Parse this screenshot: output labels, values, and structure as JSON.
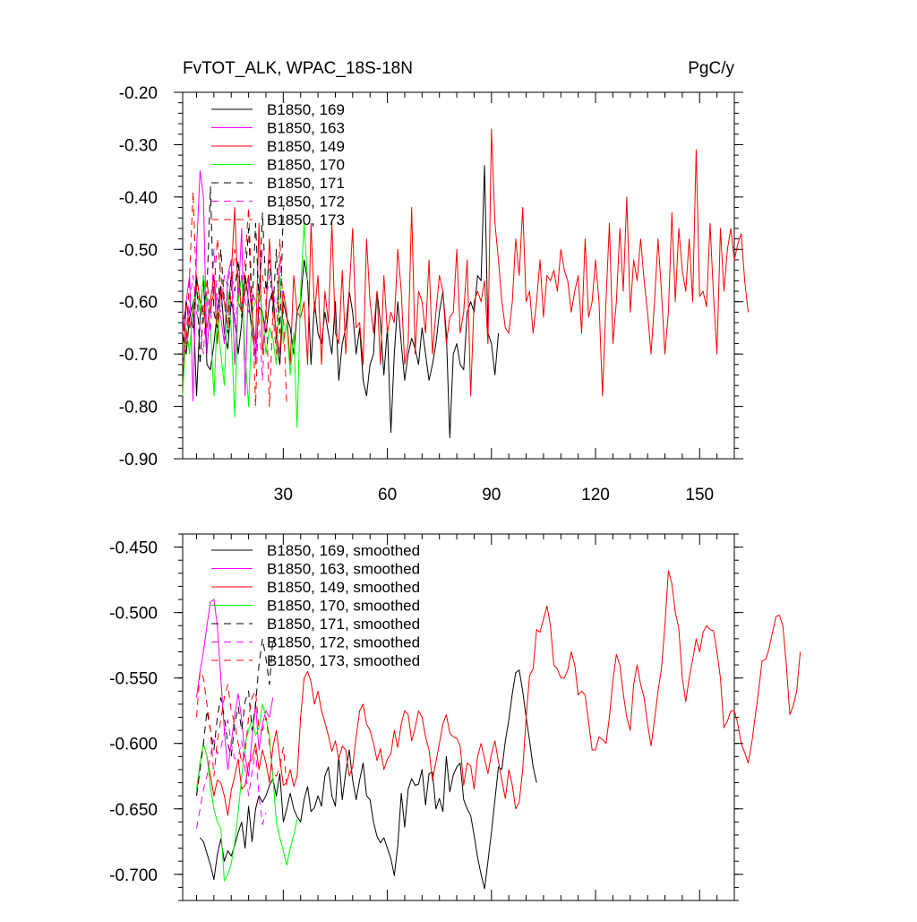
{
  "chart_data": [
    {
      "type": "line",
      "title_left": "FvTOT_ALK, WPAC_18S-18N",
      "title_right": "PgC/y",
      "xlim": [
        1,
        160
      ],
      "ylim": [
        -0.9,
        -0.2
      ],
      "x_ticks": [
        30,
        60,
        90,
        120,
        150
      ],
      "y_ticks": [
        -0.9,
        -0.8,
        -0.7,
        -0.6,
        -0.5,
        -0.4,
        -0.3,
        -0.2
      ],
      "y_tick_labels": [
        "-0.90",
        "-0.80",
        "-0.70",
        "-0.60",
        "-0.50",
        "-0.40",
        "-0.30",
        "-0.20"
      ],
      "legend_position": "top-left",
      "grid": false,
      "series": [
        {
          "name": "B1850, 169",
          "color": "#000000",
          "dash": "solid",
          "x_start": 1,
          "values": [
            -0.66,
            -0.7,
            -0.63,
            -0.6,
            -0.78,
            -0.63,
            -0.55,
            -0.72,
            -0.73,
            -0.68,
            -0.62,
            -0.57,
            -0.66,
            -0.69,
            -0.6,
            -0.63,
            -0.7,
            -0.64,
            -0.55,
            -0.6,
            -0.66,
            -0.7,
            -0.61,
            -0.62,
            -0.66,
            -0.6,
            -0.58,
            -0.67,
            -0.72,
            -0.6,
            -0.63,
            -0.65,
            -0.7,
            -0.62,
            -0.6,
            -0.52,
            -0.56,
            -0.72,
            -0.6,
            -0.66,
            -0.68,
            -0.62,
            -0.66,
            -0.7,
            -0.6,
            -0.75,
            -0.68,
            -0.65,
            -0.58,
            -0.62,
            -0.7,
            -0.65,
            -0.75,
            -0.78,
            -0.72,
            -0.7,
            -0.58,
            -0.64,
            -0.74,
            -0.65,
            -0.85,
            -0.7,
            -0.6,
            -0.68,
            -0.75,
            -0.7,
            -0.67,
            -0.69,
            -0.72,
            -0.65,
            -0.7,
            -0.75,
            -0.72,
            -0.68,
            -0.62,
            -0.58,
            -0.66,
            -0.86,
            -0.7,
            -0.68,
            -0.72,
            -0.73,
            -0.62,
            -0.6,
            -0.62,
            -0.55,
            -0.56,
            -0.34,
            -0.66,
            -0.68,
            -0.74,
            -0.66
          ]
        },
        {
          "name": "B1850, 163",
          "color": "#ff00ff",
          "dash": "solid",
          "x_start": 1,
          "values": [
            -0.66,
            -0.6,
            -0.55,
            -0.79,
            -0.5,
            -0.35,
            -0.4,
            -0.7,
            -0.6,
            -0.55,
            -0.62,
            -0.63,
            -0.68,
            -0.55,
            -0.52,
            -0.72,
            -0.6,
            -0.46,
            -0.78,
            -0.55,
            -0.62,
            -0.72,
            -0.58,
            -0.5
          ]
        },
        {
          "name": "B1850, 149",
          "color": "#ff0000",
          "dash": "solid",
          "x_start": 1,
          "values": [
            -0.77,
            -0.6,
            -0.65,
            -0.62,
            -0.55,
            -0.6,
            -0.62,
            -0.65,
            -0.6,
            -0.55,
            -0.68,
            -0.58,
            -0.6,
            -0.62,
            -0.55,
            -0.42,
            -0.6,
            -0.62,
            -0.58,
            -0.55,
            -0.63,
            -0.68,
            -0.45,
            -0.7,
            -0.62,
            -0.48,
            -0.6,
            -0.66,
            -0.7,
            -0.58,
            -0.62,
            -0.72,
            -0.55,
            -0.62,
            -0.63,
            -0.6,
            -0.72,
            -0.45,
            -0.62,
            -0.55,
            -0.72,
            -0.58,
            -0.64,
            -0.45,
            -0.66,
            -0.68,
            -0.54,
            -0.7,
            -0.58,
            -0.46,
            -0.65,
            -0.64,
            -0.72,
            -0.48,
            -0.6,
            -0.66,
            -0.58,
            -0.72,
            -0.55,
            -0.66,
            -0.62,
            -0.64,
            -0.5,
            -0.58,
            -0.72,
            -0.68,
            -0.42,
            -0.7,
            -0.58,
            -0.6,
            -0.66,
            -0.52,
            -0.7,
            -0.62,
            -0.55,
            -0.58,
            -0.68,
            -0.63,
            -0.62,
            -0.5,
            -0.66,
            -0.62,
            -0.52,
            -0.78,
            -0.6,
            -0.58,
            -0.6,
            -0.56,
            -0.68,
            -0.27,
            -0.45,
            -0.52,
            -0.6,
            -0.65,
            -0.66,
            -0.6,
            -0.48,
            -0.55,
            -0.42,
            -0.6,
            -0.58,
            -0.66,
            -0.6,
            -0.52,
            -0.63,
            -0.55,
            -0.56,
            -0.54,
            -0.58,
            -0.5,
            -0.54,
            -0.56,
            -0.62,
            -0.58,
            -0.55,
            -0.66,
            -0.48,
            -0.63,
            -0.6,
            -0.52,
            -0.6,
            -0.78,
            -0.6,
            -0.45,
            -0.68,
            -0.6,
            -0.46,
            -0.58,
            -0.4,
            -0.62,
            -0.52,
            -0.56,
            -0.48,
            -0.56,
            -0.62,
            -0.7,
            -0.6,
            -0.48,
            -0.58,
            -0.7,
            -0.62,
            -0.43,
            -0.6,
            -0.46,
            -0.54,
            -0.58,
            -0.48,
            -0.6,
            -0.31,
            -0.59,
            -0.58,
            -0.61,
            -0.45,
            -0.59,
            -0.7,
            -0.46,
            -0.58,
            -0.5,
            -0.46,
            -0.52,
            -0.49,
            -0.47,
            -0.56,
            -0.62
          ]
        },
        {
          "name": "B1850, 170",
          "color": "#00ff00",
          "dash": "solid",
          "x_start": 1,
          "values": [
            -0.78,
            -0.65,
            -0.7,
            -0.6,
            -0.58,
            -0.62,
            -0.55,
            -0.6,
            -0.65,
            -0.78,
            -0.62,
            -0.7,
            -0.76,
            -0.58,
            -0.65,
            -0.82,
            -0.6,
            -0.55,
            -0.7,
            -0.8,
            -0.62,
            -0.6,
            -0.58,
            -0.62,
            -0.7,
            -0.65,
            -0.67,
            -0.72,
            -0.55,
            -0.68,
            -0.64,
            -0.74,
            -0.66,
            -0.84,
            -0.58,
            -0.45,
            -0.56
          ]
        },
        {
          "name": "B1850, 171",
          "color": "#000000",
          "dash": "dashed",
          "x_start": 1,
          "values": [
            -0.68,
            -0.6,
            -0.62,
            -0.65,
            -0.55,
            -0.72,
            -0.6,
            -0.58,
            -0.38,
            -0.62,
            -0.65,
            -0.5,
            -0.6,
            -0.66,
            -0.55,
            -0.58,
            -0.52,
            -0.63,
            -0.56,
            -0.46,
            -0.62,
            -0.45,
            -0.6,
            -0.43,
            -0.58,
            -0.52,
            -0.62,
            -0.5,
            -0.66,
            -0.42
          ]
        },
        {
          "name": "B1850, 172",
          "color": "#ff00ff",
          "dash": "dashed",
          "x_start": 1,
          "values": [
            -0.72,
            -0.68,
            -0.6,
            -0.55,
            -0.62,
            -0.65,
            -0.7,
            -0.58,
            -0.66,
            -0.5,
            -0.6,
            -0.62,
            -0.55,
            -0.57,
            -0.52,
            -0.65,
            -0.58,
            -0.55,
            -0.6,
            -0.62,
            -0.58,
            -0.6,
            -0.63,
            -0.75,
            -0.6,
            -0.55,
            -0.58,
            -0.62,
            -0.52,
            -0.6
          ]
        },
        {
          "name": "B1850, 173",
          "color": "#ff0000",
          "dash": "dashed",
          "x_start": 1,
          "values": [
            -0.62,
            -0.68,
            -0.55,
            -0.39,
            -0.58,
            -0.6,
            -0.64,
            -0.56,
            -0.62,
            -0.58,
            -0.48,
            -0.55,
            -0.6,
            -0.65,
            -0.58,
            -0.5,
            -0.55,
            -0.62,
            -0.52,
            -0.42,
            -0.6,
            -0.8,
            -0.58,
            -0.55,
            -0.6,
            -0.8,
            -0.62,
            -0.7,
            -0.48,
            -0.62,
            -0.8
          ]
        }
      ]
    },
    {
      "type": "line",
      "xlim": [
        1,
        160
      ],
      "ylim": [
        -0.72,
        -0.44
      ],
      "x_ticks": [
        30,
        60,
        90,
        120,
        150
      ],
      "y_ticks": [
        -0.7,
        -0.65,
        -0.6,
        -0.55,
        -0.5,
        -0.45
      ],
      "y_tick_labels": [
        "-0.700",
        "-0.650",
        "-0.600",
        "-0.550",
        "-0.500",
        "-0.450"
      ],
      "legend_position": "top-left",
      "grid": false,
      "series": [
        {
          "name": "B1850, 169, smoothed",
          "color": "#000000",
          "dash": "solid",
          "x_start": 6,
          "values": [
            -0.672,
            -0.675,
            -0.684,
            -0.693,
            -0.704,
            -0.685,
            -0.673,
            -0.69,
            -0.682,
            -0.686,
            -0.678,
            -0.668,
            -0.66,
            -0.68,
            -0.648,
            -0.675,
            -0.65,
            -0.64,
            -0.645,
            -0.64,
            -0.632,
            -0.627,
            -0.64,
            -0.623,
            -0.66,
            -0.65,
            -0.638,
            -0.65,
            -0.656,
            -0.66,
            -0.643,
            -0.633,
            -0.652,
            -0.649,
            -0.64,
            -0.648,
            -0.625,
            -0.618,
            -0.64,
            -0.648,
            -0.61,
            -0.643,
            -0.622,
            -0.605,
            -0.628,
            -0.643,
            -0.628,
            -0.615,
            -0.64,
            -0.643,
            -0.66,
            -0.671,
            -0.676,
            -0.672,
            -0.68,
            -0.688,
            -0.701,
            -0.678,
            -0.638,
            -0.664,
            -0.635,
            -0.627,
            -0.632,
            -0.631,
            -0.62,
            -0.647,
            -0.623,
            -0.622,
            -0.65,
            -0.642,
            -0.652,
            -0.61,
            -0.637,
            -0.624,
            -0.618,
            -0.615,
            -0.643,
            -0.65,
            -0.655,
            -0.67,
            -0.687,
            -0.7,
            -0.711,
            -0.69,
            -0.668,
            -0.643,
            -0.618,
            -0.62,
            -0.598,
            -0.582,
            -0.562,
            -0.546,
            -0.544,
            -0.56,
            -0.58,
            -0.598,
            -0.618,
            -0.63
          ]
        },
        {
          "name": "B1850, 163, smoothed",
          "color": "#ff00ff",
          "dash": "solid",
          "x_start": 5,
          "values": [
            -0.565,
            -0.545,
            -0.53,
            -0.51,
            -0.492,
            -0.49,
            -0.51,
            -0.55,
            -0.59,
            -0.62,
            -0.6,
            -0.578,
            -0.562,
            -0.582,
            -0.61,
            -0.625,
            -0.595,
            -0.57,
            -0.605,
            -0.585,
            -0.575,
            -0.58,
            -0.565
          ]
        },
        {
          "name": "B1850, 149, smoothed",
          "color": "#ff0000",
          "dash": "solid",
          "x_start": 5,
          "values": [
            -0.64,
            -0.615,
            -0.6,
            -0.61,
            -0.625,
            -0.64,
            -0.628,
            -0.63,
            -0.64,
            -0.655,
            -0.636,
            -0.625,
            -0.612,
            -0.635,
            -0.632,
            -0.615,
            -0.612,
            -0.6,
            -0.62,
            -0.605,
            -0.615,
            -0.63,
            -0.603,
            -0.59,
            -0.612,
            -0.632,
            -0.63,
            -0.62,
            -0.633,
            -0.625,
            -0.58,
            -0.55,
            -0.545,
            -0.553,
            -0.57,
            -0.56,
            -0.575,
            -0.584,
            -0.594,
            -0.606,
            -0.598,
            -0.612,
            -0.602,
            -0.605,
            -0.625,
            -0.618,
            -0.595,
            -0.575,
            -0.57,
            -0.585,
            -0.59,
            -0.6,
            -0.613,
            -0.604,
            -0.62,
            -0.612,
            -0.608,
            -0.59,
            -0.603,
            -0.585,
            -0.575,
            -0.578,
            -0.598,
            -0.588,
            -0.575,
            -0.58,
            -0.595,
            -0.605,
            -0.628,
            -0.614,
            -0.6,
            -0.585,
            -0.578,
            -0.592,
            -0.595,
            -0.596,
            -0.602,
            -0.632,
            -0.615,
            -0.617,
            -0.635,
            -0.61,
            -0.6,
            -0.612,
            -0.623,
            -0.608,
            -0.598,
            -0.614,
            -0.628,
            -0.642,
            -0.62,
            -0.632,
            -0.65,
            -0.645,
            -0.62,
            -0.58,
            -0.548,
            -0.543,
            -0.513,
            -0.515,
            -0.505,
            -0.495,
            -0.51,
            -0.54,
            -0.543,
            -0.55,
            -0.55,
            -0.544,
            -0.53,
            -0.54,
            -0.563,
            -0.56,
            -0.563,
            -0.584,
            -0.605,
            -0.605,
            -0.595,
            -0.597,
            -0.6,
            -0.58,
            -0.552,
            -0.532,
            -0.54,
            -0.562,
            -0.58,
            -0.59,
            -0.555,
            -0.54,
            -0.555,
            -0.565,
            -0.585,
            -0.602,
            -0.582,
            -0.56,
            -0.543,
            -0.51,
            -0.468,
            -0.478,
            -0.5,
            -0.512,
            -0.55,
            -0.568,
            -0.55,
            -0.536,
            -0.52,
            -0.53,
            -0.515,
            -0.51,
            -0.513,
            -0.514,
            -0.53,
            -0.55,
            -0.588,
            -0.583,
            -0.575,
            -0.575,
            -0.585,
            -0.6,
            -0.607,
            -0.615,
            -0.6,
            -0.58,
            -0.56,
            -0.537,
            -0.536,
            -0.528,
            -0.515,
            -0.503,
            -0.502,
            -0.51,
            -0.54,
            -0.578,
            -0.571,
            -0.56,
            -0.53
          ]
        },
        {
          "name": "B1850, 170, smoothed",
          "color": "#00ff00",
          "dash": "solid",
          "x_start": 5,
          "values": [
            -0.635,
            -0.615,
            -0.6,
            -0.61,
            -0.633,
            -0.65,
            -0.66,
            -0.665,
            -0.705,
            -0.7,
            -0.692,
            -0.676,
            -0.652,
            -0.626,
            -0.6,
            -0.59,
            -0.582,
            -0.594,
            -0.588,
            -0.57,
            -0.58,
            -0.595,
            -0.625,
            -0.66,
            -0.672,
            -0.682,
            -0.693,
            -0.68,
            -0.67,
            -0.658
          ]
        },
        {
          "name": "B1850, 171, smoothed",
          "color": "#000000",
          "dash": "dashed",
          "x_start": 5,
          "values": [
            -0.64,
            -0.62,
            -0.6,
            -0.575,
            -0.59,
            -0.605,
            -0.58,
            -0.565,
            -0.58,
            -0.6,
            -0.61,
            -0.585,
            -0.572,
            -0.59,
            -0.568,
            -0.56,
            -0.59,
            -0.57,
            -0.54,
            -0.52,
            -0.535,
            -0.555,
            -0.52,
            -0.525
          ]
        },
        {
          "name": "B1850, 172, smoothed",
          "color": "#ff00ff",
          "dash": "dashed",
          "x_start": 5,
          "values": [
            -0.665,
            -0.65,
            -0.635,
            -0.625,
            -0.61,
            -0.597,
            -0.608,
            -0.603,
            -0.592,
            -0.582,
            -0.6,
            -0.612,
            -0.61,
            -0.598,
            -0.62,
            -0.64,
            -0.622,
            -0.605,
            -0.64,
            -0.662,
            -0.653
          ]
        },
        {
          "name": "B1850, 173, smoothed",
          "color": "#ff0000",
          "dash": "dashed",
          "x_start": 5,
          "values": [
            -0.58,
            -0.545,
            -0.55,
            -0.57,
            -0.59,
            -0.625,
            -0.598,
            -0.582,
            -0.565,
            -0.555,
            -0.575,
            -0.585,
            -0.6,
            -0.615,
            -0.607,
            -0.58,
            -0.565,
            -0.56,
            -0.59,
            -0.59,
            -0.58,
            -0.6,
            -0.623,
            -0.625,
            -0.618,
            -0.603,
            -0.632
          ]
        }
      ]
    }
  ]
}
